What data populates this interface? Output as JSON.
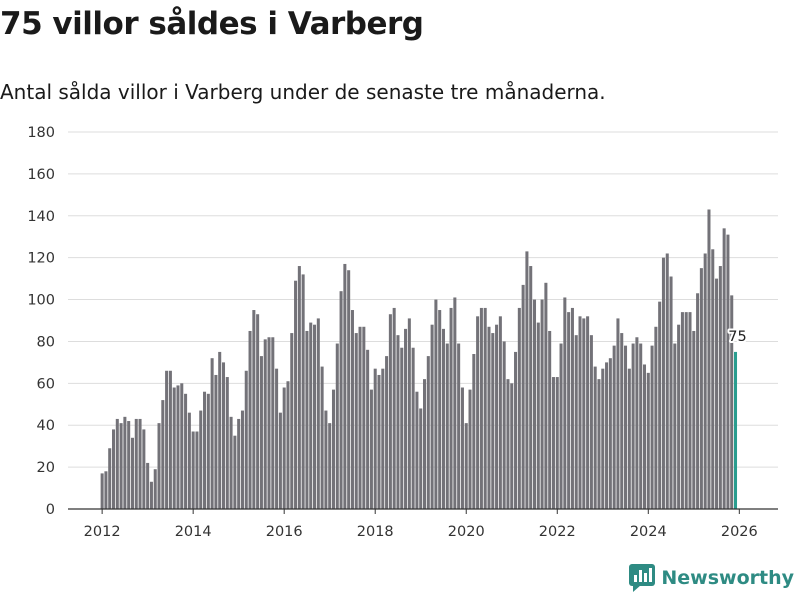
{
  "header": {
    "title": "75 villor såldes i Varberg",
    "subtitle": "Antal sålda villor i Varberg under de senaste tre månaderna."
  },
  "brand": {
    "name": "Newsworthy",
    "icon": "newsworthy-chart-icon",
    "color": "#2e8b83"
  },
  "colors": {
    "bar": "#737278",
    "highlight": "#2a9d8f",
    "grid": "#dddddd",
    "axis": "#333333"
  },
  "chart_data": {
    "type": "bar",
    "title": "75 villor såldes i Varberg",
    "subtitle": "Antal sålda villor i Varberg under de senaste tre månaderna.",
    "xlabel": "",
    "ylabel": "",
    "ylim": [
      0,
      180
    ],
    "yticks": [
      0,
      20,
      40,
      60,
      80,
      100,
      120,
      140,
      160,
      180
    ],
    "xlim": [
      2011.25,
      2026.85
    ],
    "xticks": [
      2012,
      2014,
      2016,
      2018,
      2020,
      2022,
      2024,
      2026
    ],
    "grid": true,
    "frequency": "monthly",
    "start": "2012-01",
    "values": [
      17,
      18,
      29,
      38,
      43,
      41,
      44,
      42,
      34,
      43,
      43,
      38,
      22,
      13,
      19,
      41,
      52,
      66,
      66,
      58,
      59,
      60,
      55,
      46,
      37,
      37,
      47,
      56,
      55,
      72,
      64,
      75,
      70,
      63,
      44,
      35,
      43,
      47,
      66,
      85,
      95,
      93,
      73,
      81,
      82,
      82,
      67,
      46,
      58,
      61,
      84,
      109,
      116,
      112,
      85,
      89,
      88,
      91,
      68,
      47,
      41,
      57,
      79,
      104,
      117,
      114,
      95,
      84,
      87,
      87,
      76,
      57,
      67,
      64,
      67,
      73,
      93,
      96,
      83,
      77,
      86,
      91,
      77,
      56,
      48,
      62,
      73,
      88,
      100,
      95,
      86,
      79,
      96,
      101,
      79,
      58,
      41,
      57,
      74,
      92,
      96,
      96,
      87,
      84,
      88,
      92,
      80,
      62,
      60,
      75,
      96,
      107,
      123,
      116,
      100,
      89,
      100,
      108,
      85,
      63,
      63,
      79,
      101,
      94,
      96,
      83,
      92,
      91,
      92,
      83,
      68,
      62,
      67,
      70,
      72,
      78,
      91,
      84,
      78,
      67,
      79,
      82,
      79,
      69,
      65,
      78,
      87,
      99,
      120,
      122,
      111,
      79,
      88,
      94,
      94,
      94,
      85,
      103,
      115,
      122,
      143,
      124,
      110,
      116,
      134,
      131,
      102,
      75
    ],
    "highlight": {
      "index": 167,
      "label": "75"
    }
  }
}
